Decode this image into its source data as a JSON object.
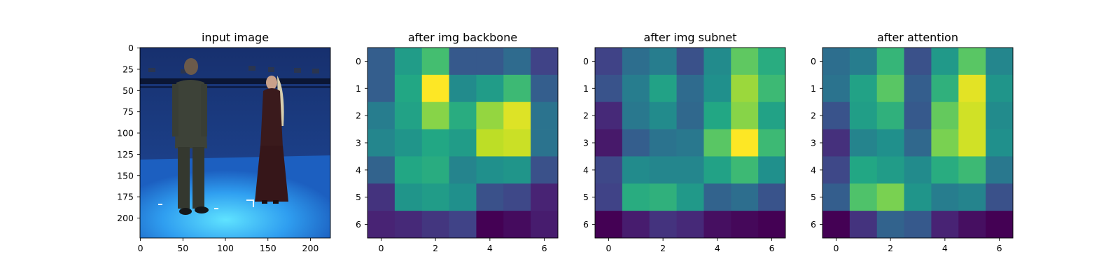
{
  "figure": {
    "panels": [
      {
        "title": "input image"
      },
      {
        "title": "after img backbone"
      },
      {
        "title": "after img subnet"
      },
      {
        "title": "after attention"
      }
    ]
  },
  "chart_data": [
    {
      "type": "image",
      "title": "input image",
      "xlim": [
        0,
        224
      ],
      "ylim": [
        224,
        0
      ],
      "xticks": [
        0,
        50,
        100,
        150,
        200
      ],
      "yticks": [
        0,
        25,
        50,
        75,
        100,
        125,
        150,
        175,
        200
      ],
      "content": "photograph of a man and a woman standing on a blue motion-capture stage"
    },
    {
      "type": "heatmap",
      "title": "after img backbone",
      "colormap": "viridis",
      "xticks": [
        0,
        2,
        4,
        6
      ],
      "yticks": [
        0,
        1,
        2,
        3,
        4,
        5,
        6
      ],
      "values": [
        [
          0.3,
          0.55,
          0.7,
          0.28,
          0.28,
          0.35,
          0.2
        ],
        [
          0.3,
          0.6,
          1.0,
          0.48,
          0.55,
          0.68,
          0.3
        ],
        [
          0.42,
          0.58,
          0.82,
          0.62,
          0.84,
          0.95,
          0.38
        ],
        [
          0.46,
          0.52,
          0.6,
          0.55,
          0.9,
          0.92,
          0.38
        ],
        [
          0.32,
          0.6,
          0.62,
          0.45,
          0.5,
          0.52,
          0.25
        ],
        [
          0.15,
          0.52,
          0.55,
          0.5,
          0.25,
          0.22,
          0.1
        ],
        [
          0.1,
          0.12,
          0.16,
          0.2,
          0.0,
          0.03,
          0.08
        ]
      ]
    },
    {
      "type": "heatmap",
      "title": "after img subnet",
      "colormap": "viridis",
      "xticks": [
        0,
        2,
        4,
        6
      ],
      "yticks": [
        0,
        1,
        2,
        3,
        4,
        5,
        6
      ],
      "values": [
        [
          0.2,
          0.36,
          0.42,
          0.25,
          0.48,
          0.75,
          0.62
        ],
        [
          0.26,
          0.42,
          0.58,
          0.35,
          0.5,
          0.85,
          0.68
        ],
        [
          0.12,
          0.4,
          0.48,
          0.34,
          0.6,
          0.82,
          0.58
        ],
        [
          0.07,
          0.3,
          0.38,
          0.4,
          0.74,
          1.0,
          0.68
        ],
        [
          0.22,
          0.48,
          0.46,
          0.46,
          0.58,
          0.68,
          0.5
        ],
        [
          0.2,
          0.62,
          0.64,
          0.54,
          0.32,
          0.36,
          0.26
        ],
        [
          0.0,
          0.08,
          0.15,
          0.12,
          0.04,
          0.02,
          0.0
        ]
      ]
    },
    {
      "type": "heatmap",
      "title": "after attention",
      "colormap": "viridis",
      "xticks": [
        0,
        2,
        4,
        6
      ],
      "yticks": [
        0,
        1,
        2,
        3,
        4,
        5,
        6
      ],
      "values": [
        [
          0.36,
          0.42,
          0.66,
          0.25,
          0.54,
          0.74,
          0.46
        ],
        [
          0.38,
          0.58,
          0.74,
          0.3,
          0.64,
          0.96,
          0.52
        ],
        [
          0.26,
          0.56,
          0.64,
          0.28,
          0.76,
          0.93,
          0.48
        ],
        [
          0.14,
          0.45,
          0.5,
          0.34,
          0.8,
          0.93,
          0.5
        ],
        [
          0.22,
          0.6,
          0.55,
          0.48,
          0.62,
          0.68,
          0.4
        ],
        [
          0.3,
          0.72,
          0.8,
          0.52,
          0.42,
          0.45,
          0.25
        ],
        [
          0.0,
          0.15,
          0.32,
          0.28,
          0.1,
          0.04,
          0.0
        ]
      ]
    }
  ]
}
